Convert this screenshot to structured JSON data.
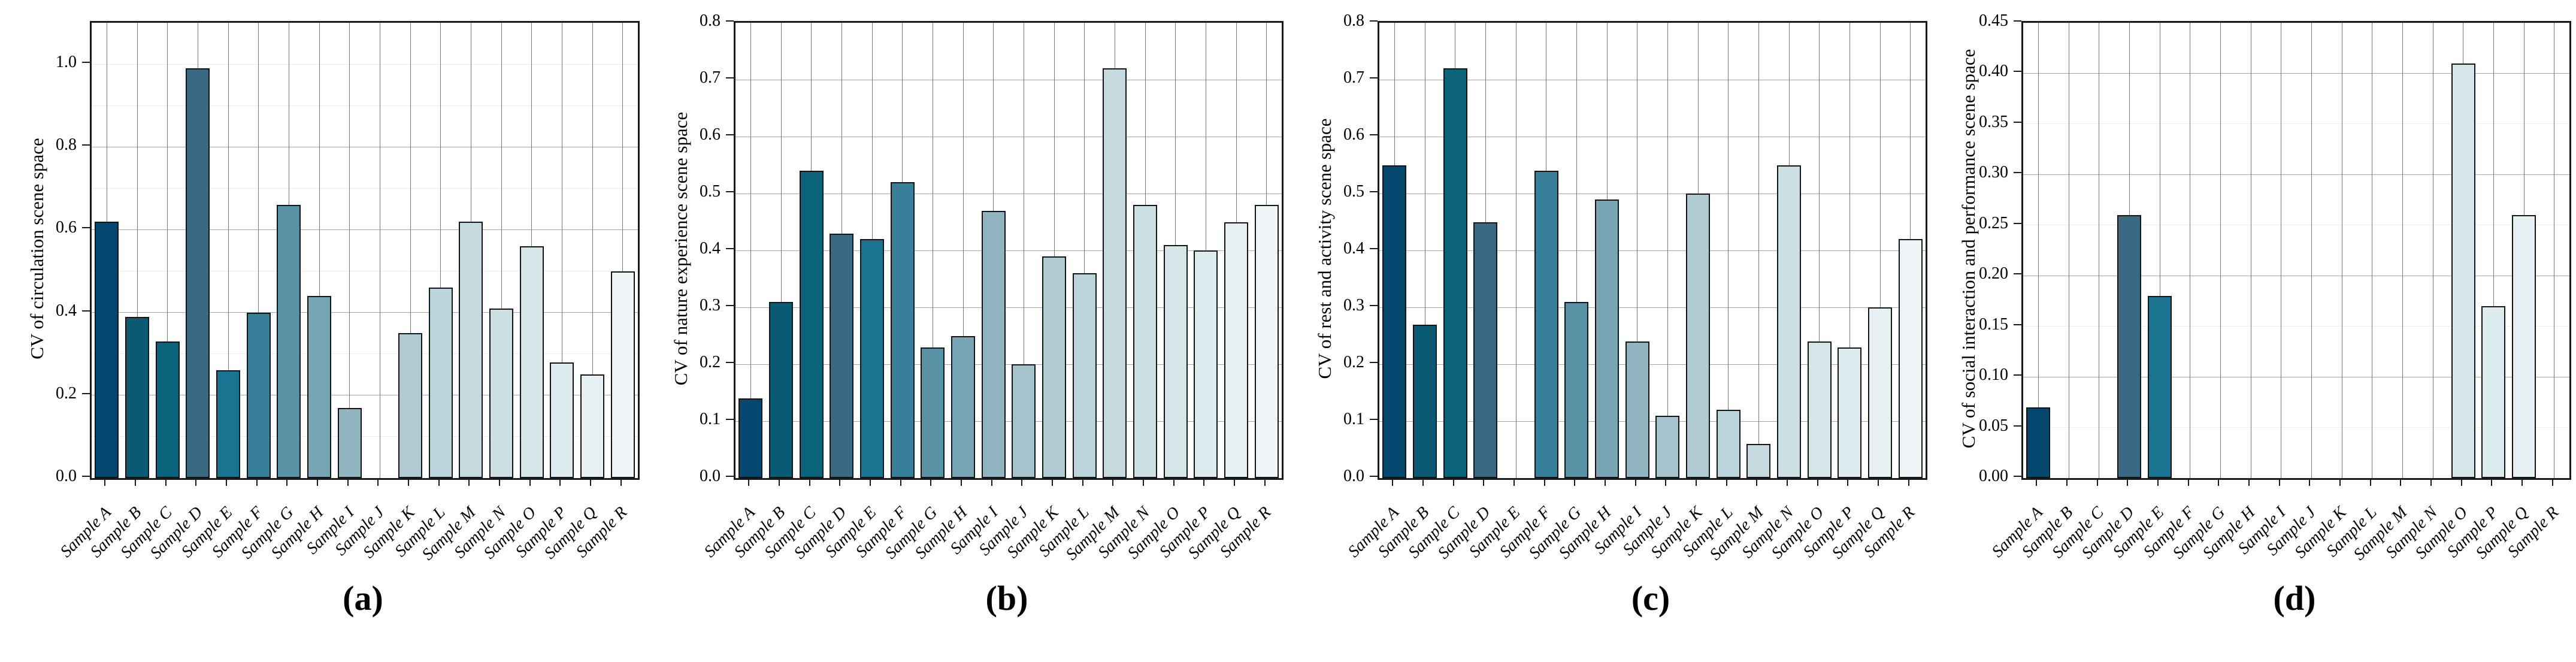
{
  "figure": {
    "background": "#ffffff",
    "frame_color": "#1a1a1a",
    "bar_edge_color": "#121518",
    "vgrid_color": "#757575",
    "hgrid_major_color": "#a6a6a6",
    "hgrid_minor_color": "#ececec"
  },
  "samples": [
    "Sample A",
    "Sample B",
    "Sample C",
    "Sample D",
    "Sample E",
    "Sample F",
    "Sample G",
    "Sample H",
    "Sample I",
    "Sample J",
    "Sample K",
    "Sample L",
    "Sample M",
    "Sample N",
    "Sample O",
    "Sample P",
    "Sample Q",
    "Sample R"
  ],
  "palette": [
    "#05486F",
    "#0A5A74",
    "#0B647C",
    "#3A6A83",
    "#1A7390",
    "#38809A",
    "#5892A4",
    "#77A5B3",
    "#90B5C1",
    "#A4C3CD",
    "#B0CBD4",
    "#BBD3DA",
    "#C4DADF",
    "#CCDFE3",
    "#D5E6E9",
    "#DEEBEE",
    "#E6F0F2",
    "#EFF5F6"
  ],
  "chart_data": [
    {
      "type": "bar",
      "panel": "a",
      "caption": "(a)",
      "title": "",
      "xlabel": "",
      "ylabel": "CV of circulation scene space",
      "ylim": [
        0,
        1.1
      ],
      "legend": "none",
      "grid": "on",
      "yticks": [
        "0.0",
        "0.2",
        "0.4",
        "0.6",
        "0.8",
        "1.0"
      ],
      "ytick_values": [
        0,
        0.2,
        0.4,
        0.6,
        0.8,
        1.0
      ],
      "hgrid_major": [
        0.2,
        0.4,
        0.6,
        0.8
      ],
      "hgrid_minor": [
        0.1,
        0.3,
        0.5,
        0.7,
        0.9,
        1.0
      ],
      "values": [
        0.62,
        0.39,
        0.33,
        0.99,
        0.26,
        0.4,
        0.66,
        0.44,
        0.17,
        0,
        0.35,
        0.46,
        0.62,
        0.41,
        0.56,
        0.28,
        0.25,
        0.5
      ]
    },
    {
      "type": "bar",
      "panel": "b",
      "caption": "(b)",
      "title": "",
      "xlabel": "",
      "ylabel": "CV of nature experience scene space",
      "ylim": [
        0,
        0.8
      ],
      "legend": "none",
      "grid": "on",
      "yticks": [
        "0.0",
        "0.1",
        "0.2",
        "0.3",
        "0.4",
        "0.5",
        "0.6",
        "0.7",
        "0.8"
      ],
      "ytick_values": [
        0,
        0.1,
        0.2,
        0.3,
        0.4,
        0.5,
        0.6,
        0.7,
        0.8
      ],
      "hgrid_major": [
        0.1,
        0.2,
        0.3,
        0.4,
        0.5,
        0.6,
        0.7
      ],
      "hgrid_minor": [],
      "values": [
        0.14,
        0.31,
        0.54,
        0.43,
        0.42,
        0.52,
        0.23,
        0.25,
        0.47,
        0.2,
        0.39,
        0.36,
        0.72,
        0.48,
        0.41,
        0.4,
        0.45,
        0.48
      ]
    },
    {
      "type": "bar",
      "panel": "c",
      "caption": "(c)",
      "title": "",
      "xlabel": "",
      "ylabel": "CV of rest and activity scene space",
      "ylim": [
        0,
        0.8
      ],
      "legend": "none",
      "grid": "on",
      "yticks": [
        "0.0",
        "0.1",
        "0.2",
        "0.3",
        "0.4",
        "0.5",
        "0.6",
        "0.7",
        "0.8"
      ],
      "ytick_values": [
        0,
        0.1,
        0.2,
        0.3,
        0.4,
        0.5,
        0.6,
        0.7,
        0.8
      ],
      "hgrid_major": [
        0.1,
        0.2,
        0.3,
        0.4,
        0.5,
        0.6,
        0.7
      ],
      "hgrid_minor": [],
      "values": [
        0.55,
        0.27,
        0.72,
        0.45,
        0,
        0.54,
        0.31,
        0.49,
        0.24,
        0.11,
        0.5,
        0.12,
        0.06,
        0.55,
        0.24,
        0.23,
        0.3,
        0.42
      ]
    },
    {
      "type": "bar",
      "panel": "d",
      "caption": "(d)",
      "title": "",
      "xlabel": "",
      "ylabel": "CV of social interaction and performance scene space",
      "ylim": [
        0,
        0.45
      ],
      "legend": "none",
      "grid": "on",
      "yticks": [
        "0.00",
        "0.05",
        "0.10",
        "0.15",
        "0.20",
        "0.25",
        "0.30",
        "0.35",
        "0.40",
        "0.45"
      ],
      "ytick_values": [
        0,
        0.05,
        0.1,
        0.15,
        0.2,
        0.25,
        0.3,
        0.35,
        0.4,
        0.45
      ],
      "hgrid_major": [
        0.1,
        0.2,
        0.3,
        0.4
      ],
      "hgrid_minor": [
        0.05,
        0.15,
        0.25,
        0.35,
        0.45
      ],
      "values": [
        0.07,
        0,
        0,
        0.26,
        0.18,
        0,
        0,
        0,
        0,
        0,
        0,
        0,
        0,
        0,
        0.41,
        0.17,
        0.26,
        0
      ]
    }
  ]
}
